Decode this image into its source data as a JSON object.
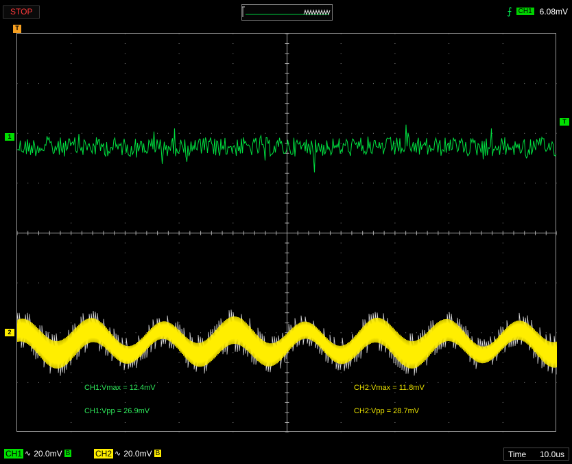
{
  "status": {
    "run_state": "STOP"
  },
  "trigger": {
    "channel": "CH1",
    "level": "6.08mV",
    "edge_icon": "rising-edge-icon"
  },
  "markers": {
    "ch1": "1",
    "ch2": "2",
    "trigger_level": "T",
    "trigger_position": "T"
  },
  "measurements": {
    "ch1_vmax": "CH1:Vmax = 12.4mV",
    "ch1_vpp": "CH1:Vpp = 26.9mV",
    "ch2_vmax": "CH2:Vmax = 11.8mV",
    "ch2_vpp": "CH2:Vpp = 28.7mV"
  },
  "bottom": {
    "ch1": {
      "label": "CH1",
      "coupling_icon": "ac-coupling-icon",
      "coupling_symbol": "∿",
      "scale": "20.0mV",
      "bw": "B"
    },
    "ch2": {
      "label": "CH2",
      "coupling_icon": "ac-coupling-icon",
      "coupling_symbol": "∿",
      "scale": "20.0mV",
      "bw": "B"
    },
    "time": {
      "label": "Time",
      "value": "10.0us"
    }
  },
  "colors": {
    "ch1": "#00e040",
    "ch2": "#ffee00",
    "background": "#000000",
    "grid": "#8c8c8c",
    "stop": "#ff3a3a"
  }
}
